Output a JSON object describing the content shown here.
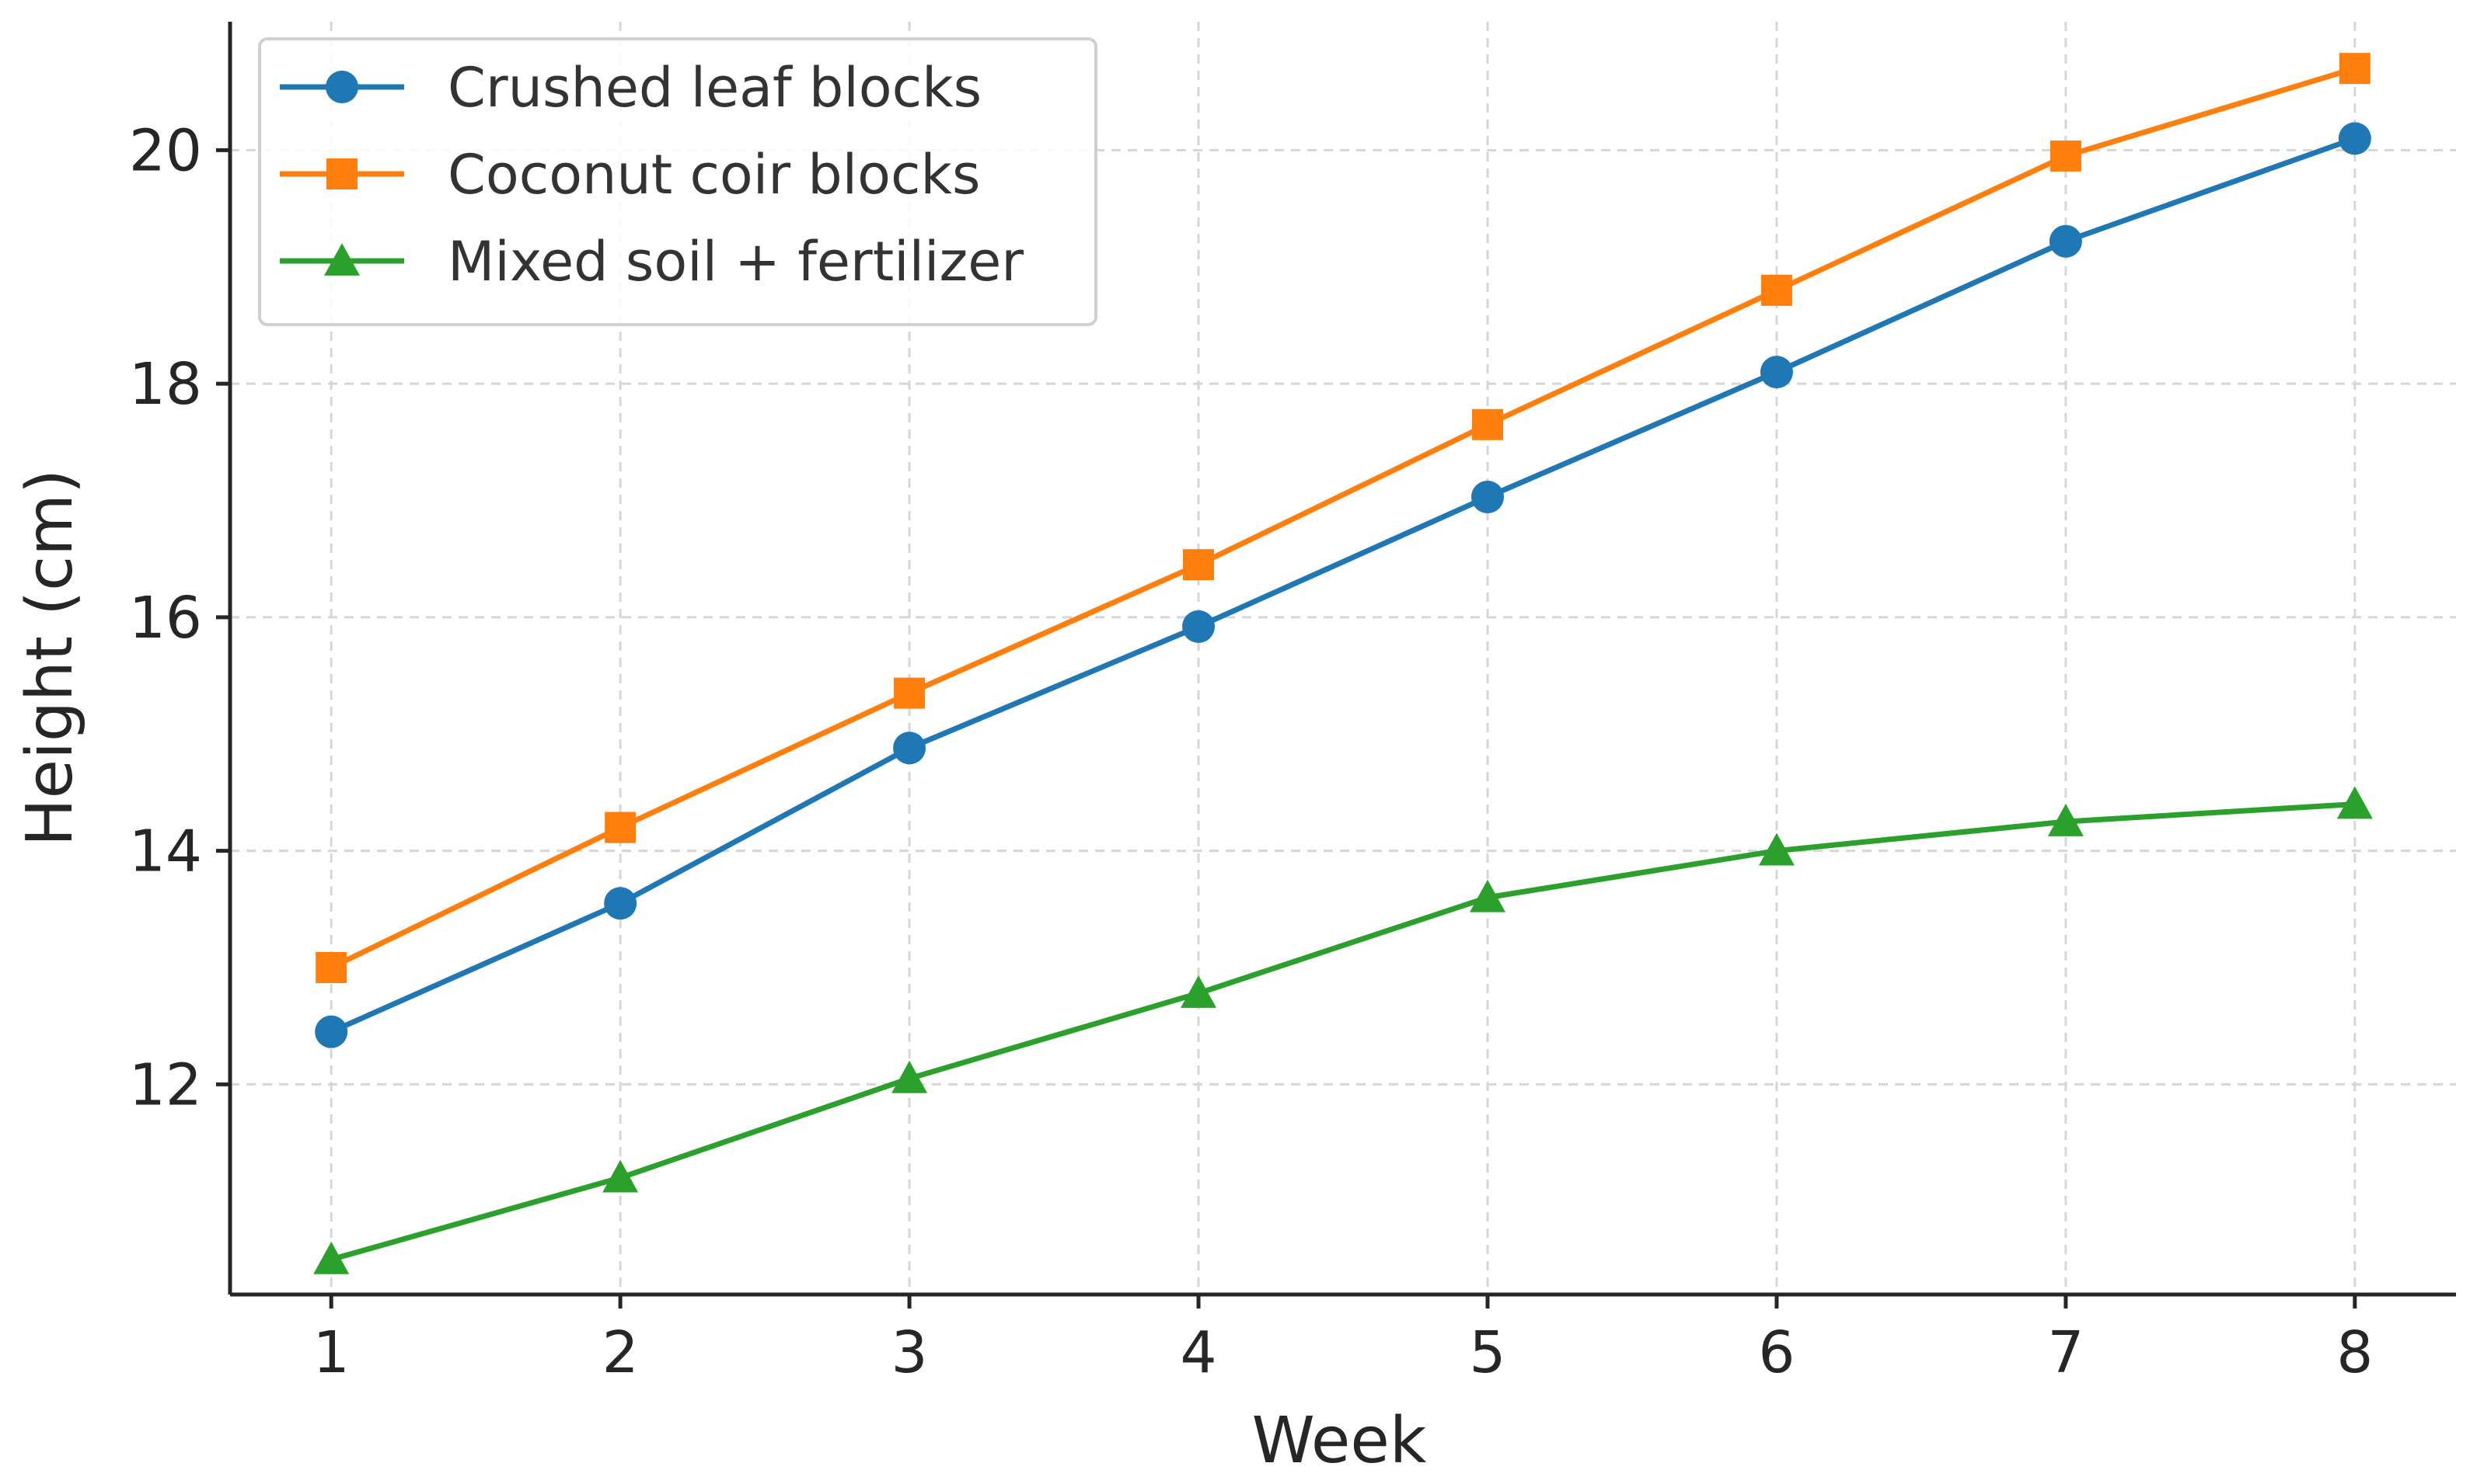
{
  "chart_data": {
    "type": "line",
    "title": "",
    "xlabel": "Week",
    "ylabel": "Height (cm)",
    "x": [
      1,
      2,
      3,
      4,
      5,
      6,
      7,
      8
    ],
    "xlim": [
      0.65,
      8.35
    ],
    "ylim": [
      10.2,
      21.1
    ],
    "xticks": [
      1,
      2,
      3,
      4,
      5,
      6,
      7,
      8
    ],
    "yticks": [
      12,
      14,
      16,
      18,
      20
    ],
    "grid": true,
    "legend_position": "top-left",
    "series": [
      {
        "name": "Crushed leaf blocks",
        "color": "#1f77b4",
        "marker": "circle",
        "values": [
          12.45,
          13.55,
          14.88,
          15.92,
          17.03,
          18.1,
          19.22,
          20.1
        ]
      },
      {
        "name": "Coconut coir blocks",
        "color": "#ff7f0e",
        "marker": "square",
        "values": [
          13.0,
          14.2,
          15.35,
          16.45,
          17.65,
          18.8,
          19.95,
          20.7
        ]
      },
      {
        "name": "Mixed soil + fertilizer",
        "color": "#2ca02c",
        "marker": "triangle",
        "values": [
          10.5,
          11.2,
          12.05,
          12.78,
          13.6,
          14.0,
          14.25,
          14.4
        ]
      }
    ]
  }
}
